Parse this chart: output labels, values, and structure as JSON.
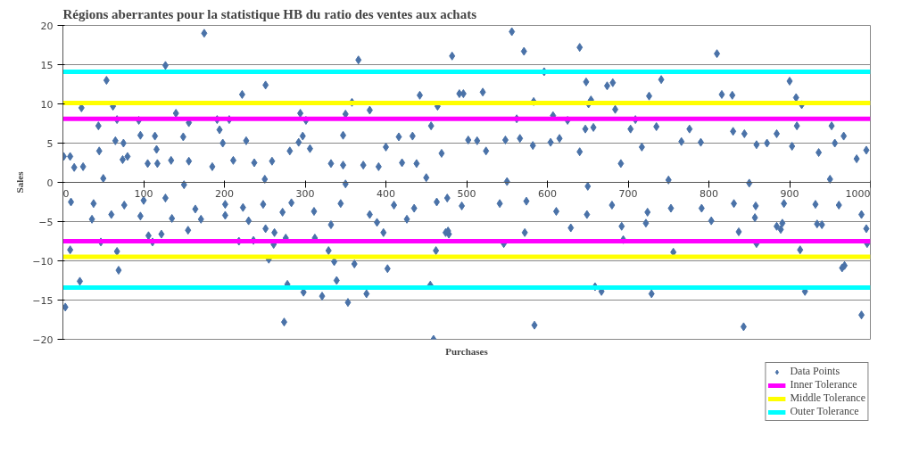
{
  "chart_data": {
    "type": "scatter",
    "title": "Régions aberrantes pour la statistique HB du ratio des ventes aux achats",
    "xlabel": "Purchases",
    "ylabel": "Sales",
    "xlim": [
      0,
      1000
    ],
    "xticks": [
      0,
      100,
      200,
      300,
      400,
      500,
      600,
      700,
      800,
      900,
      1000
    ],
    "ylim": [
      -20,
      20
    ],
    "yticks": [
      -20,
      -15,
      -10,
      -5,
      0,
      5,
      10,
      15,
      20
    ],
    "grid": "y",
    "legend": "bottom right",
    "series": [
      {
        "name": "Data Points",
        "color": "#4a72a8",
        "marker": "diamond",
        "x": [
          1,
          9,
          23,
          44,
          45,
          54,
          62,
          67,
          65,
          75,
          94,
          96,
          116,
          114,
          127,
          140,
          149,
          156,
          175,
          191,
          194,
          198,
          206,
          222,
          227,
          251,
          292,
          294,
          301,
          297,
          358,
          350,
          347,
          366,
          380,
          400,
          416,
          433,
          442,
          456,
          464,
          482,
          491,
          496,
          520,
          556,
          571,
          562,
          566,
          596,
          583,
          607,
          625,
          640,
          648,
          654,
          651,
          674,
          681,
          684,
          657,
          647,
          709,
          703,
          726,
          741,
          735,
          776,
          810,
          816,
          829,
          830,
          844,
          884,
          900,
          908,
          915,
          909,
          952,
          967,
          995,
          3,
          9,
          21,
          47,
          67,
          69,
          36,
          60,
          96,
          106,
          122,
          111,
          135,
          155,
          171,
          201,
          218,
          230,
          236,
          251,
          262,
          261,
          255,
          276,
          278,
          274,
          272,
          298,
          312,
          321,
          329,
          332,
          336,
          339,
          353,
          361,
          376,
          389,
          397,
          402,
          426,
          455,
          459,
          462,
          474,
          478,
          477,
          546,
          572,
          584,
          629,
          694,
          667,
          659,
          729,
          756,
          837,
          859,
          843,
          913,
          919,
          968,
          965,
          989,
          996,
          995,
          989,
          889,
          891,
          884,
          934,
          940,
          857,
          803,
          722,
          692,
          14,
          25,
          74,
          80,
          105,
          117,
          134,
          156,
          185,
          211,
          237,
          259,
          281,
          306,
          332,
          347,
          372,
          391,
          420,
          438,
          469,
          502,
          513,
          548,
          524,
          582,
          604,
          615,
          640,
          691,
          717,
          766,
          790,
          859,
          872,
          903,
          936,
          956,
          983,
          10,
          38,
          76,
          100,
          127,
          164,
          201,
          223,
          248,
          283,
          311,
          344,
          380,
          410,
          435,
          463,
          476,
          494,
          541,
          574,
          611,
          649,
          680,
          724,
          753,
          791,
          831,
          858,
          893,
          932,
          961,
          50,
          150,
          250,
          350,
          450,
          550,
          650,
          750,
          850,
          950
        ],
        "values": [
          3.3,
          3.3,
          9.5,
          7.2,
          4.0,
          13.0,
          9.7,
          8.0,
          5.3,
          5.0,
          7.9,
          6.0,
          4.2,
          5.9,
          14.9,
          8.8,
          5.8,
          7.6,
          19.0,
          8.0,
          6.7,
          5.0,
          8.0,
          11.2,
          5.3,
          12.4,
          5.1,
          8.8,
          7.9,
          5.9,
          10.2,
          8.7,
          6.0,
          15.6,
          9.2,
          4.5,
          5.8,
          5.9,
          11.1,
          7.2,
          9.7,
          16.1,
          11.3,
          11.3,
          11.5,
          19.2,
          16.7,
          8.1,
          5.6,
          14.1,
          10.3,
          8.5,
          7.9,
          17.2,
          12.8,
          10.5,
          10.0,
          12.3,
          12.7,
          9.3,
          7.0,
          6.8,
          8.0,
          6.8,
          11.0,
          13.1,
          7.1,
          6.8,
          16.4,
          11.2,
          11.1,
          6.5,
          6.2,
          6.2,
          12.9,
          10.8,
          9.9,
          7.2,
          7.2,
          5.9,
          4.1,
          -15.9,
          -8.6,
          -12.6,
          -7.6,
          -8.8,
          -11.2,
          -4.7,
          -4.1,
          -4.3,
          -6.8,
          -6.6,
          -7.6,
          -4.6,
          -6.1,
          -4.7,
          -4.2,
          -7.5,
          -4.9,
          -7.4,
          -5.9,
          -6.4,
          -7.9,
          -9.8,
          -7.1,
          -13.0,
          -17.8,
          -3.8,
          -14.0,
          -7.1,
          -14.5,
          -8.7,
          -5.4,
          -10.1,
          -12.5,
          -15.3,
          -10.4,
          -14.2,
          -5.1,
          -6.4,
          -11.0,
          -4.7,
          -13.1,
          -20.0,
          -8.7,
          -6.4,
          -6.6,
          -6.2,
          -7.8,
          -6.4,
          -18.2,
          -5.8,
          -7.3,
          -13.9,
          -13.3,
          -14.2,
          -8.9,
          -6.3,
          -7.8,
          -18.4,
          -8.6,
          -13.9,
          -10.6,
          -10.9,
          -16.9,
          -7.8,
          -5.9,
          -4.1,
          -6.0,
          -5.2,
          -5.6,
          -5.3,
          -5.4,
          -4.5,
          -4.9,
          -5.2,
          -5.6,
          1.9,
          2.0,
          2.9,
          3.3,
          2.4,
          2.4,
          2.8,
          2.7,
          2.0,
          2.8,
          2.5,
          2.7,
          4.0,
          4.3,
          2.4,
          2.2,
          2.2,
          2.0,
          2.5,
          2.4,
          3.7,
          5.4,
          5.3,
          5.4,
          4.0,
          4.7,
          5.1,
          5.6,
          3.9,
          2.4,
          4.5,
          5.2,
          5.1,
          4.8,
          5.0,
          4.6,
          3.8,
          5.0,
          3.0,
          -2.5,
          -2.7,
          -2.9,
          -2.3,
          -2.0,
          -3.4,
          -2.8,
          -3.2,
          -2.8,
          -2.6,
          -3.7,
          -2.7,
          -4.1,
          -2.9,
          -3.3,
          -2.5,
          -2.0,
          -3.0,
          -2.7,
          -2.4,
          -3.7,
          -4.1,
          -2.9,
          -3.8,
          -3.3,
          -3.3,
          -2.7,
          -3.0,
          -2.7,
          -2.8,
          -2.9,
          0.5,
          -0.3,
          0.4,
          -0.2,
          0.6,
          0.1,
          -0.5,
          0.3,
          -0.1,
          0.4
        ]
      },
      {
        "name": "Inner Tolerance",
        "color": "#ff00ff",
        "type": "line",
        "x": [
          0,
          1000
        ],
        "values": [
          8.1,
          8.1
        ]
      },
      {
        "color": "#ff00ff",
        "type": "line",
        "x": [
          0,
          1000
        ],
        "values": [
          -7.5,
          -7.5
        ]
      },
      {
        "name": "Middle Tolerance",
        "color": "#ffff00",
        "type": "line",
        "x": [
          0,
          1000
        ],
        "values": [
          10.1,
          10.1
        ]
      },
      {
        "color": "#ffff00",
        "type": "line",
        "x": [
          0,
          1000
        ],
        "values": [
          -9.5,
          -9.5
        ]
      },
      {
        "name": "Outer Tolerance",
        "color": "#00ffff",
        "type": "line",
        "x": [
          0,
          1000
        ],
        "values": [
          14.1,
          14.1
        ]
      },
      {
        "color": "#00ffff",
        "type": "line",
        "x": [
          0,
          1000
        ],
        "values": [
          -13.4,
          -13.4
        ]
      }
    ]
  }
}
